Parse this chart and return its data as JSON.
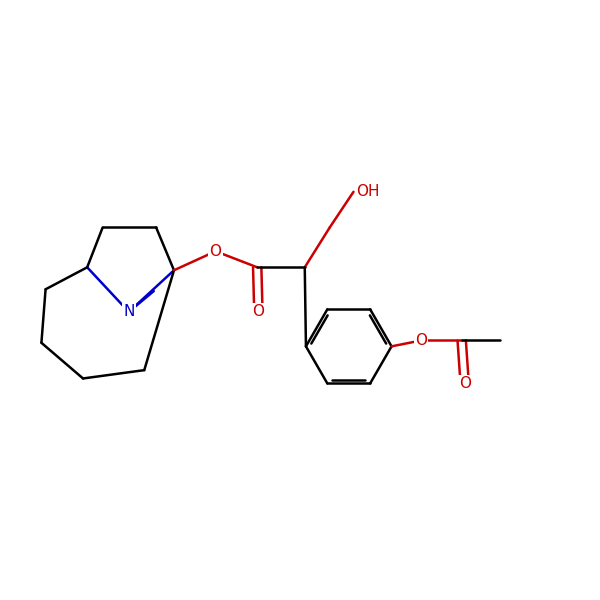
{
  "bg": "#ffffff",
  "bc": "#000000",
  "nc": "#0000cc",
  "oc": "#cc0000",
  "lw": 1.8,
  "fs": 11,
  "dpi": 100,
  "xlim": [
    0,
    10
  ],
  "ylim": [
    0,
    10
  ]
}
